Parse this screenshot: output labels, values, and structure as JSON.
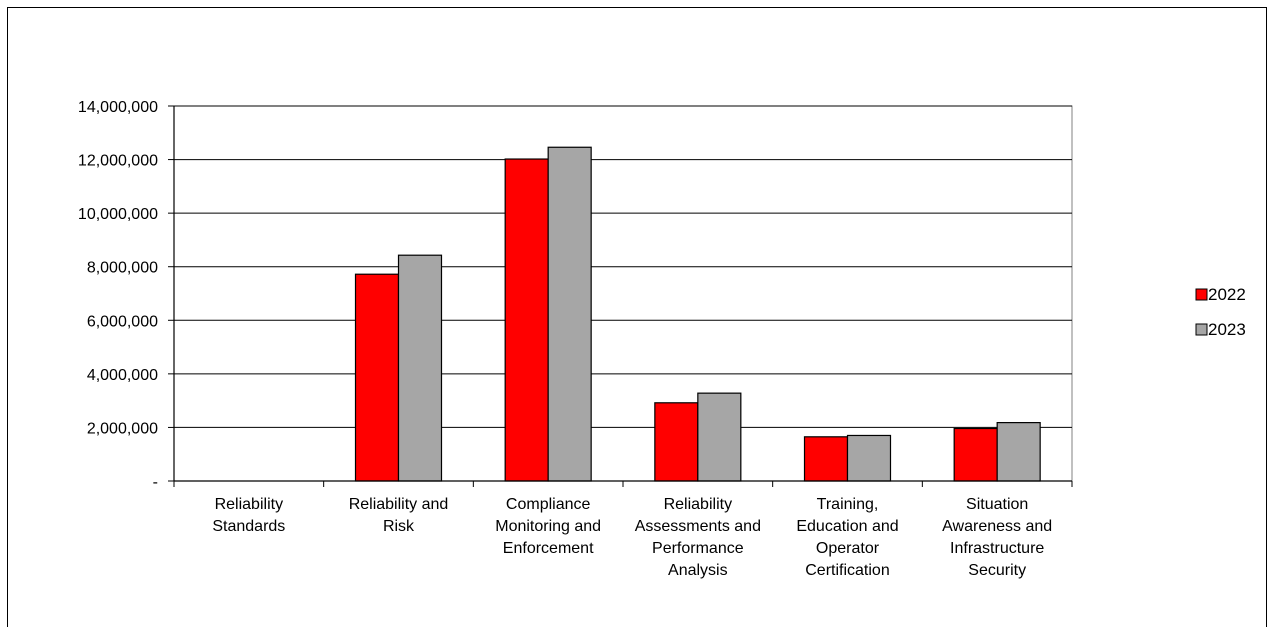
{
  "chart_data": {
    "type": "bar",
    "title": "",
    "xlabel": "",
    "ylabel": "",
    "ylim": [
      0,
      14000000
    ],
    "y_tick_step": 2000000,
    "y_tick_labels": [
      "-",
      "2,000,000",
      "4,000,000",
      "6,000,000",
      "8,000,000",
      "10,000,000",
      "12,000,000",
      "14,000,000"
    ],
    "grid": true,
    "legend_position": "right",
    "categories": [
      [
        "Reliability",
        "Standards"
      ],
      [
        "Reliability and",
        "Risk"
      ],
      [
        "Compliance",
        "Monitoring and",
        "Enforcement"
      ],
      [
        "Reliability",
        "Assessments and",
        "Performance",
        "Analysis"
      ],
      [
        "Training,",
        "Education and",
        "Operator",
        "Certification"
      ],
      [
        "Situation",
        "Awareness and",
        "Infrastructure",
        "Security"
      ]
    ],
    "series": [
      {
        "name": "2022",
        "color": "#ff0000",
        "values": [
          0,
          7720000,
          12020000,
          2920000,
          1650000,
          1960000
        ]
      },
      {
        "name": "2023",
        "color": "#a6a6a6",
        "values": [
          0,
          8430000,
          12460000,
          3280000,
          1700000,
          2180000
        ]
      }
    ]
  }
}
